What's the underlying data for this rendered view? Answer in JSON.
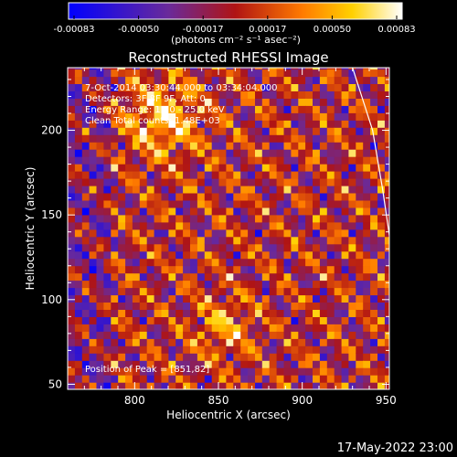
{
  "colorbar": {
    "ticks": [
      "-0.00083",
      "-0.00050",
      "-0.00017",
      "0.00017",
      "0.00050",
      "0.00083"
    ],
    "unit_label": "(photons cm⁻² s⁻¹ asec⁻²)"
  },
  "chart_data": {
    "type": "heatmap",
    "title": "Reconstructed RHESSI Image",
    "xlabel": "Heliocentric X (arcsec)",
    "ylabel": "Heliocentric Y (arcsec)",
    "xlim": [
      760,
      952
    ],
    "ylim": [
      47,
      237
    ],
    "x_ticks": [
      800,
      850,
      900,
      950
    ],
    "y_ticks": [
      50,
      100,
      150,
      200
    ],
    "x_tick_labels": [
      "800",
      "850",
      "900",
      "950"
    ],
    "y_tick_labels": [
      "50",
      "100",
      "150",
      "200"
    ],
    "colorscale": {
      "min": -0.00083,
      "max": 0.00083,
      "colors": [
        "#0000ff",
        "#6a2a9a",
        "#b01414",
        "#ff7a00",
        "#ffd000",
        "#ffffff"
      ]
    },
    "peak_position": [
      851,
      82
    ],
    "info_lines": [
      "7-Oct-2014 03:30:44.000 to 03:34:04.000",
      "Detectors: 3F 8F 9F, Att: 0",
      "Energy Range: 12.0 - 25.0 keV",
      "Clean     Total counts: 1.48E+03"
    ],
    "peak_label": "Position of Peak = [851,82]",
    "limb_curve": [
      [
        930,
        237
      ],
      [
        942,
        200
      ],
      [
        948,
        165
      ],
      [
        952,
        138
      ]
    ]
  },
  "timestamp": "17-May-2022 23:00"
}
